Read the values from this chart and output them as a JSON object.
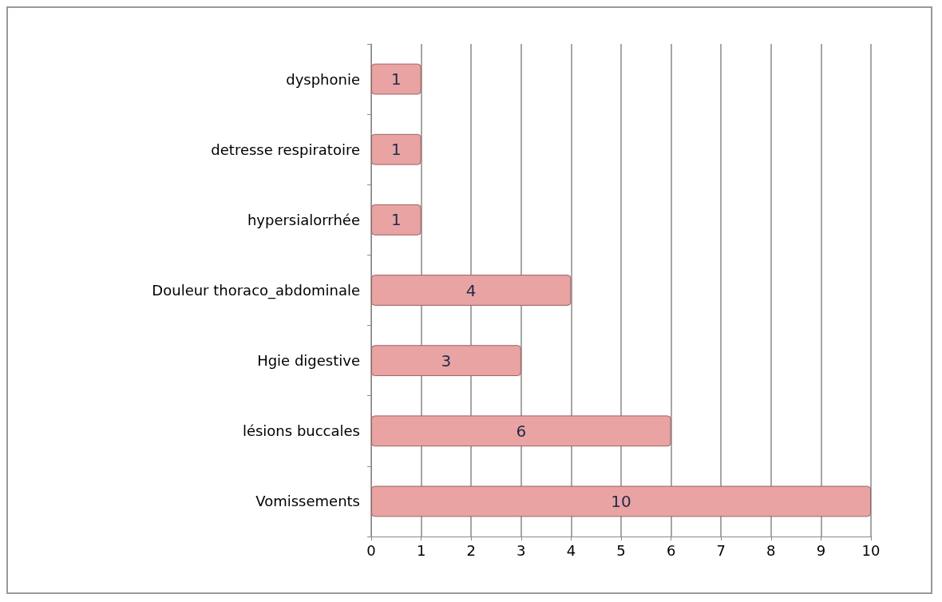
{
  "chart_data": {
    "type": "bar",
    "orientation": "horizontal",
    "categories": [
      "dysphonie",
      "detresse respiratoire",
      "hypersialorrhée",
      "Douleur thoraco_abdominale",
      "Hgie digestive",
      "lésions buccales",
      "Vomissements"
    ],
    "values": [
      1,
      1,
      1,
      4,
      3,
      6,
      10
    ],
    "color": "#e9a3a3",
    "xlim": [
      0,
      10
    ],
    "xticks": [
      0,
      1,
      2,
      3,
      4,
      5,
      6,
      7,
      8,
      9,
      10
    ],
    "grid": "x",
    "data_labels": true
  }
}
